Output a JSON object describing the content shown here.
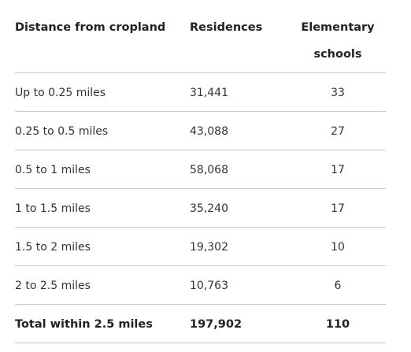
{
  "table": {
    "headers": {
      "distance_label": "Distance from cropland",
      "residences_label": "Residences",
      "schools_label": "Elementary schools"
    },
    "rows": [
      {
        "distance": "Up to 0.25 miles",
        "residences": "31,441",
        "schools": "33"
      },
      {
        "distance": "0.25 to 0.5 miles",
        "residences": "43,088",
        "schools": "27"
      },
      {
        "distance": "0.5 to 1 miles",
        "residences": "58,068",
        "schools": "17"
      },
      {
        "distance": "1 to 1.5 miles",
        "residences": "35,240",
        "schools": "17"
      },
      {
        "distance": "1.5 to 2 miles",
        "residences": "19,302",
        "schools": "10"
      },
      {
        "distance": "2 to 2.5 miles",
        "residences": "10,763",
        "schools": "6"
      }
    ],
    "total": {
      "distance": "Total within 2.5 miles",
      "residences": "197,902",
      "schools": "110"
    }
  }
}
